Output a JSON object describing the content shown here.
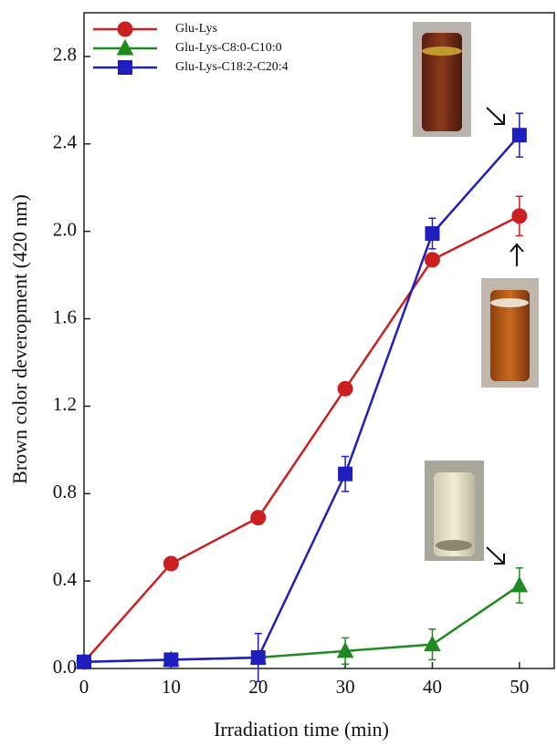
{
  "chart_data": {
    "type": "line",
    "x_label": "Irradiation time (min)",
    "y_label": "Brown color deveropment (420 nm)",
    "x": [
      0,
      10,
      20,
      30,
      40,
      50
    ],
    "series": [
      {
        "name": "Glu-Lys",
        "color": "#cc1f1f",
        "marker": "circle",
        "values": [
          0.03,
          0.48,
          0.69,
          1.28,
          1.87,
          2.07
        ],
        "errors": [
          null,
          null,
          null,
          null,
          null,
          0.09
        ]
      },
      {
        "name": "Glu-Lys-C8:0-C10:0",
        "color": "#1f8a1f",
        "marker": "triangle",
        "values": [
          0.03,
          0.04,
          0.05,
          0.08,
          0.11,
          0.38
        ],
        "errors": [
          null,
          null,
          null,
          0.06,
          0.07,
          0.08
        ]
      },
      {
        "name": "Glu-Lys-C18:2-C20:4",
        "color": "#1f1fbf",
        "marker": "square",
        "values": [
          0.03,
          0.04,
          0.05,
          0.89,
          1.99,
          2.44
        ],
        "errors": [
          null,
          null,
          0.11,
          0.08,
          0.07,
          0.1
        ]
      }
    ],
    "xlim": [
      0,
      54
    ],
    "ylim": [
      0,
      3.0
    ],
    "xticks": [
      0,
      10,
      20,
      30,
      40,
      50
    ],
    "yticks": [
      {
        "value": 0,
        "label": "0.0"
      },
      0.4,
      0.8,
      1.2,
      1.6,
      {
        "value": 2,
        "label": "2.0"
      },
      2.4,
      2.8
    ],
    "grid": false,
    "legend": "upper left"
  }
}
